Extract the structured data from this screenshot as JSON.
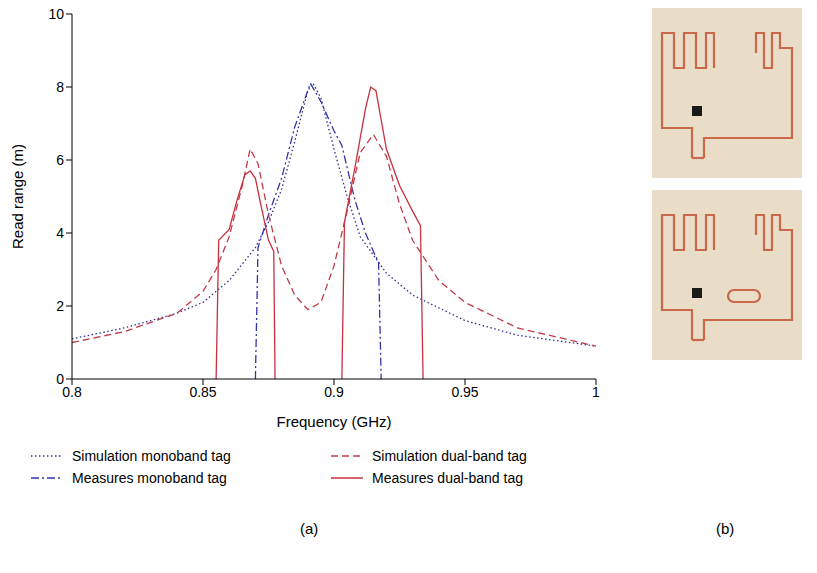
{
  "chart_data": {
    "type": "line",
    "xlabel": "Frequency (GHz)",
    "ylabel": "Read range (m)",
    "xlim": [
      0.8,
      1
    ],
    "xticks": [
      0.8,
      0.85,
      0.9,
      0.95,
      1
    ],
    "ylim": [
      0,
      10
    ],
    "yticks": [
      0,
      2,
      4,
      6,
      8,
      10
    ],
    "grid": false,
    "legend": "bottom",
    "series": [
      {
        "name": "Simulation monoband tag",
        "color": "#2e2e8c",
        "line_style": "dotted",
        "x": [
          0.8,
          0.82,
          0.84,
          0.85,
          0.86,
          0.87,
          0.875,
          0.88,
          0.885,
          0.89,
          0.892,
          0.895,
          0.9,
          0.905,
          0.91,
          0.92,
          0.93,
          0.95,
          0.97,
          1.0
        ],
        "values": [
          1.1,
          1.4,
          1.8,
          2.1,
          2.7,
          3.6,
          4.3,
          5.2,
          6.5,
          7.9,
          8.1,
          7.7,
          6.3,
          5.0,
          3.9,
          2.9,
          2.3,
          1.6,
          1.2,
          0.9
        ]
      },
      {
        "name": "Measures monoband tag",
        "color": "#3333aa",
        "line_style": "dashdot",
        "x": [
          0.87,
          0.871,
          0.875,
          0.88,
          0.885,
          0.889,
          0.891,
          0.895,
          0.9,
          0.903,
          0.905,
          0.908,
          0.912,
          0.915,
          0.917,
          0.918
        ],
        "values": [
          0,
          3.6,
          4.5,
          5.5,
          6.9,
          7.7,
          8.1,
          7.6,
          6.8,
          6.4,
          5.8,
          4.9,
          4.0,
          3.5,
          3.2,
          0
        ]
      },
      {
        "name": "Simulation dual-band tag",
        "color": "#c23b4a",
        "line_style": "dashed",
        "x": [
          0.8,
          0.82,
          0.84,
          0.85,
          0.855,
          0.86,
          0.865,
          0.868,
          0.871,
          0.875,
          0.88,
          0.885,
          0.89,
          0.895,
          0.9,
          0.905,
          0.91,
          0.915,
          0.92,
          0.925,
          0.93,
          0.94,
          0.95,
          0.97,
          1.0
        ],
        "values": [
          1.0,
          1.3,
          1.8,
          2.4,
          3.0,
          3.9,
          5.3,
          6.3,
          5.9,
          4.5,
          3.1,
          2.3,
          1.9,
          2.1,
          3.1,
          4.6,
          6.2,
          6.7,
          6.1,
          4.8,
          3.8,
          2.7,
          2.1,
          1.4,
          0.9
        ]
      },
      {
        "name": "Measures dual-band tag",
        "color": "#c8303f",
        "line_style": "solid",
        "x": [
          0.855,
          0.856,
          0.86,
          0.863,
          0.866,
          0.868,
          0.87,
          0.872,
          0.875,
          0.877,
          0.8775,
          0.89,
          0.903,
          0.904,
          0.908,
          0.912,
          0.914,
          0.916,
          0.92,
          0.925,
          0.93,
          0.933,
          0.934
        ],
        "values": [
          0,
          3.8,
          4.1,
          4.9,
          5.6,
          5.7,
          5.5,
          4.8,
          3.8,
          3.5,
          0,
          null,
          0,
          4.3,
          5.8,
          7.4,
          8.0,
          7.9,
          6.3,
          5.3,
          4.6,
          4.2,
          0
        ]
      }
    ]
  },
  "panels": {
    "a": {
      "label": "(a)"
    },
    "b": {
      "label": "(b)"
    }
  }
}
